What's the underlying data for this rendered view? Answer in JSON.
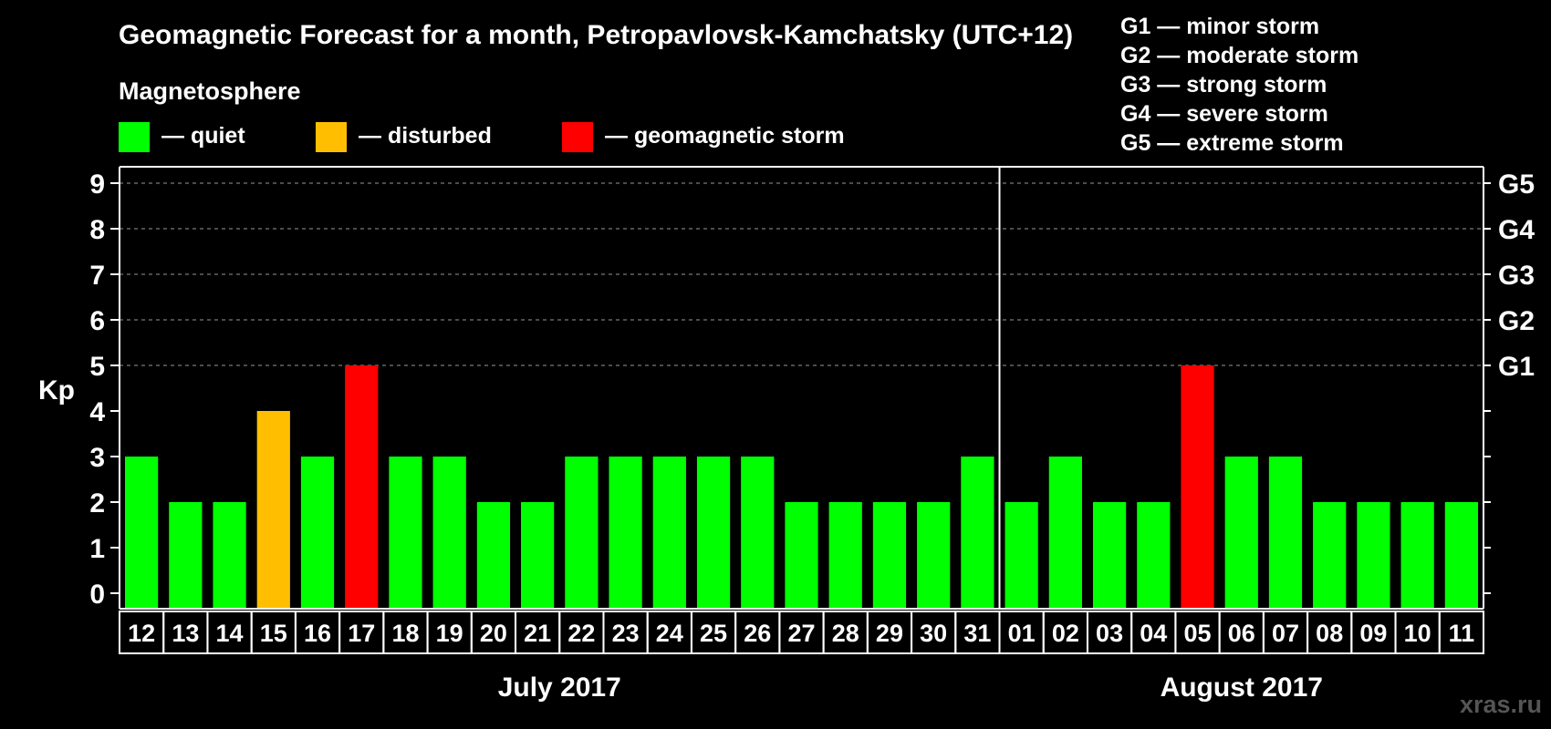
{
  "chart_data": {
    "type": "bar",
    "title": "Geomagnetic Forecast for a month, Petropavlovsk-Kamchatsky (UTC+12)",
    "ylabel": "Kp",
    "ylim": [
      0,
      9
    ],
    "yticks": [
      "0",
      "1",
      "2",
      "3",
      "4",
      "5",
      "6",
      "7",
      "8",
      "9"
    ],
    "right_axis": {
      "ticks": [
        {
          "value": 5,
          "label": "G1"
        },
        {
          "value": 6,
          "label": "G2"
        },
        {
          "value": 7,
          "label": "G3"
        },
        {
          "value": 8,
          "label": "G4"
        },
        {
          "value": 9,
          "label": "G5"
        }
      ]
    },
    "grid": "dashed at 5–9",
    "legend": {
      "heading": "Magnetosphere",
      "items": [
        {
          "label": "— quiet",
          "color": "#00ff00"
        },
        {
          "label": "— disturbed",
          "color": "#ffbf00"
        },
        {
          "label": "— geomagnetic storm",
          "color": "#ff0000"
        }
      ]
    },
    "storm_scale": [
      "G1 — minor storm",
      "G2 — moderate storm",
      "G3 — strong storm",
      "G4 — severe storm",
      "G5 — extreme storm"
    ],
    "categories": [
      "12",
      "13",
      "14",
      "15",
      "16",
      "17",
      "18",
      "19",
      "20",
      "21",
      "22",
      "23",
      "24",
      "25",
      "26",
      "27",
      "28",
      "29",
      "30",
      "31",
      "01",
      "02",
      "03",
      "04",
      "05",
      "06",
      "07",
      "08",
      "09",
      "10",
      "11"
    ],
    "values": [
      3,
      2,
      2,
      4,
      3,
      5,
      3,
      3,
      2,
      2,
      3,
      3,
      3,
      3,
      3,
      2,
      2,
      2,
      2,
      3,
      2,
      3,
      2,
      2,
      5,
      3,
      3,
      2,
      2,
      2,
      2
    ],
    "months": [
      {
        "label": "July 2017",
        "start": 0,
        "count": 20
      },
      {
        "label": "August 2017",
        "start": 20,
        "count": 11
      }
    ],
    "colors": {
      "quiet": "#00ff00",
      "disturbed": "#ffbf00",
      "storm": "#ff0000"
    },
    "watermark": "xras.ru"
  }
}
